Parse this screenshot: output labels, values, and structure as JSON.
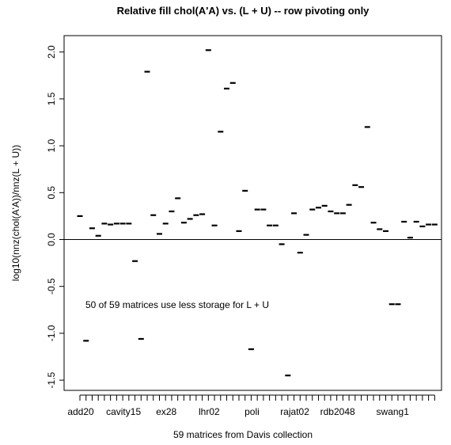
{
  "chart_data": {
    "type": "scatter",
    "title": "Relative fill chol(A'A) vs. (L + U) -- row pivoting only",
    "xlabel": "59 matrices from Davis collection",
    "ylabel": "log10(nnz(chol(A'A))/nnz(L + U))",
    "annotation": "50 of 59 matrices use less storage for L + U",
    "n_points": 59,
    "xlim": [
      1,
      59
    ],
    "ylim": [
      -1.6,
      2.1
    ],
    "yticks": [
      -1.5,
      -1.0,
      -0.5,
      0.0,
      0.5,
      1.0,
      1.5,
      2.0
    ],
    "ytick_labels": [
      "-1.5",
      "-1.0",
      "-0.5",
      "0.0",
      "0.5",
      "1.0",
      "1.5",
      "2.0"
    ],
    "xtick_labels": [
      {
        "index": 1,
        "label": "add20"
      },
      {
        "index": 8,
        "label": "cavity15"
      },
      {
        "index": 15,
        "label": "ex28"
      },
      {
        "index": 22,
        "label": "lhr02"
      },
      {
        "index": 29,
        "label": "poli"
      },
      {
        "index": 36,
        "label": "rajat02"
      },
      {
        "index": 43,
        "label": "rdb2048"
      },
      {
        "index": 52,
        "label": "swang1"
      }
    ],
    "reference_line": 0,
    "grid": false,
    "values": [
      0.25,
      -1.08,
      0.12,
      0.04,
      0.17,
      0.16,
      0.17,
      0.17,
      0.17,
      -0.23,
      -1.06,
      1.79,
      0.26,
      0.06,
      0.17,
      0.3,
      0.44,
      0.18,
      0.22,
      0.26,
      0.27,
      2.02,
      0.15,
      1.15,
      1.61,
      1.67,
      0.09,
      0.52,
      -1.17,
      0.32,
      0.32,
      0.15,
      0.15,
      -0.05,
      -1.45,
      0.28,
      -0.14,
      0.05,
      0.32,
      0.34,
      0.36,
      0.3,
      0.28,
      0.28,
      0.37,
      0.58,
      0.56,
      1.2,
      0.18,
      0.11,
      0.09,
      -0.69,
      -0.69,
      0.19,
      0.02,
      0.19,
      0.14,
      0.16,
      0.16
    ]
  }
}
